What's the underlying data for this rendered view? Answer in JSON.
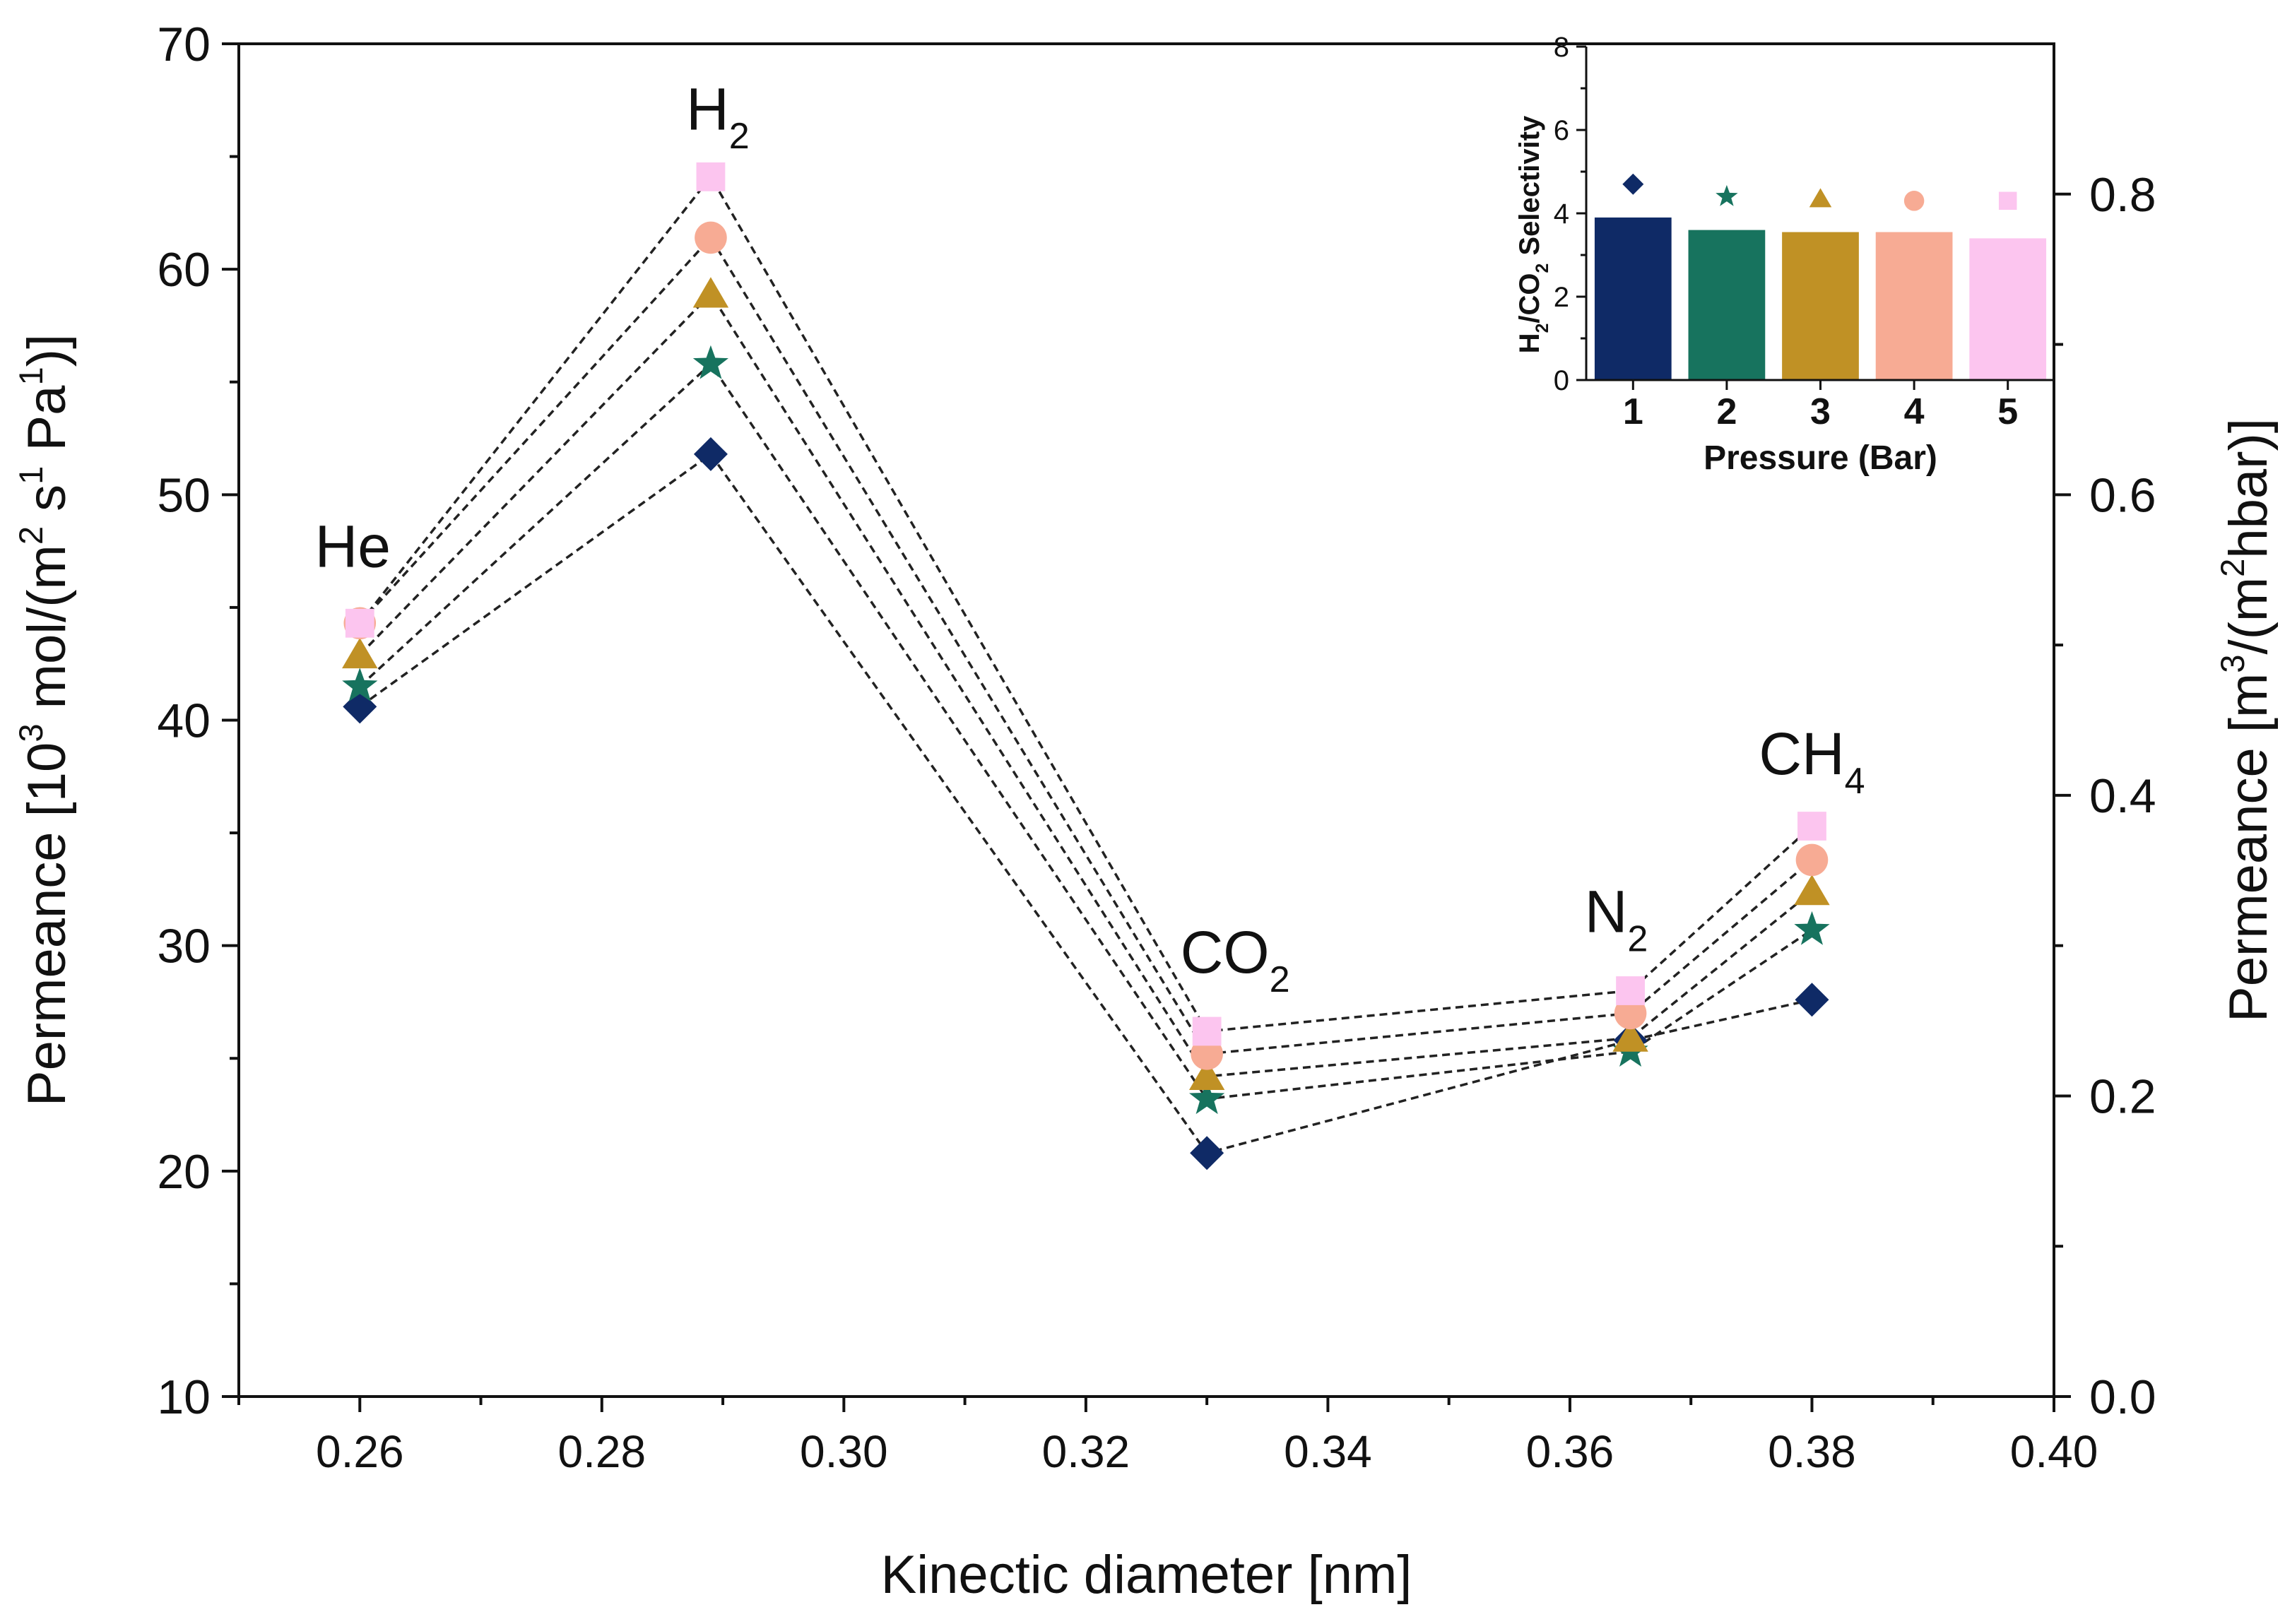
{
  "chart_data": [
    {
      "type": "line",
      "x_axis": {
        "label": "Kinectic diameter [nm]",
        "range": [
          0.25,
          0.4
        ],
        "ticks": [
          0.26,
          0.28,
          0.3,
          0.32,
          0.34,
          0.36,
          0.38,
          0.4
        ],
        "tick_labels": [
          "0.26",
          "0.28",
          "0.30",
          "0.32",
          "0.34",
          "0.36",
          "0.38",
          "0.40"
        ]
      },
      "y_axis_left": {
        "label_parts": [
          "Permeance [10",
          "3",
          " mol/(m",
          "2",
          " s",
          "1",
          " Pa",
          "1",
          ")]"
        ],
        "range": [
          10,
          70
        ],
        "ticks": [
          10,
          20,
          30,
          40,
          50,
          60,
          70
        ],
        "tick_labels": [
          "10",
          "20",
          "30",
          "40",
          "50",
          "60",
          "70"
        ]
      },
      "y_axis_right": {
        "label_parts": [
          "Permeance [m",
          "3",
          "/(m",
          "2",
          "hbar)]"
        ],
        "range": [
          0.0,
          0.9
        ],
        "ticks": [
          0.0,
          0.2,
          0.4,
          0.6,
          0.8
        ],
        "tick_labels": [
          "0.0",
          "0.2",
          "0.4",
          "0.6",
          "0.8"
        ]
      },
      "gas_labels": [
        {
          "base": "He",
          "sub": "",
          "x": 0.26
        },
        {
          "base": "H",
          "sub": "2",
          "x": 0.289
        },
        {
          "base": "CO",
          "sub": "2",
          "x": 0.33
        },
        {
          "base": "N",
          "sub": "2",
          "x": 0.365
        },
        {
          "base": "CH",
          "sub": "4",
          "x": 0.38
        }
      ],
      "x": [
        0.26,
        0.289,
        0.33,
        0.365,
        0.38
      ],
      "series": [
        {
          "name": "1 bar",
          "marker": "diamond",
          "color": "#0f2a66",
          "values": [
            40.6,
            51.8,
            20.8,
            25.8,
            27.6
          ]
        },
        {
          "name": "2 bar",
          "marker": "star",
          "color": "#17735e",
          "values": [
            41.5,
            55.8,
            23.2,
            25.3,
            30.7
          ]
        },
        {
          "name": "3 bar",
          "marker": "triangle",
          "color": "#c09125",
          "values": [
            42.9,
            58.9,
            24.2,
            25.9,
            32.4
          ]
        },
        {
          "name": "4 bar",
          "marker": "circle",
          "color": "#f7ab94",
          "values": [
            44.3,
            61.4,
            25.2,
            27.0,
            33.8
          ]
        },
        {
          "name": "5 bar",
          "marker": "square",
          "color": "#fcc5ef",
          "values": [
            44.3,
            64.1,
            26.2,
            28.0,
            35.3
          ]
        }
      ]
    },
    {
      "type": "bar",
      "title": "",
      "xlabel": "Pressure (Bar)",
      "ylabel_parts": [
        "H",
        "2",
        "/CO",
        "2",
        " Selectivity"
      ],
      "categories": [
        "1",
        "2",
        "3",
        "4",
        "5"
      ],
      "ylim": [
        0,
        8
      ],
      "yticks": [
        0,
        2,
        4,
        6,
        8
      ],
      "ytick_labels": [
        "0",
        "2",
        "4",
        "6",
        "8"
      ],
      "values": [
        3.9,
        3.6,
        3.55,
        3.55,
        3.4
      ],
      "marker_values": [
        4.7,
        4.4,
        4.35,
        4.3,
        4.3
      ],
      "markers": [
        "diamond",
        "star",
        "triangle",
        "circle",
        "square"
      ],
      "colors": [
        "#0f2a66",
        "#17735e",
        "#c09125",
        "#f7ab94",
        "#fcc5ef"
      ]
    }
  ]
}
